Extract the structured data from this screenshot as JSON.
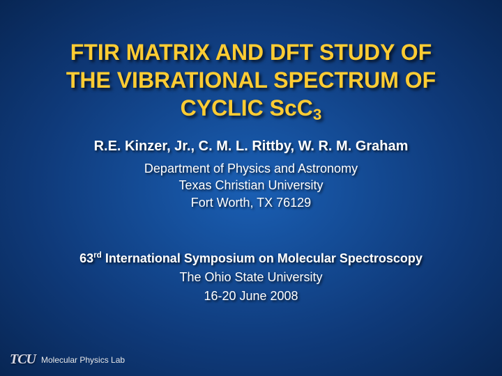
{
  "slide": {
    "background": {
      "gradient_center": "#1a5fb4",
      "gradient_mid": "#0f3a7a",
      "gradient_edge": "#082654"
    },
    "title": {
      "line1": "FTIR MATRIX AND DFT STUDY OF",
      "line2": "THE VIBRATIONAL SPECTRUM OF",
      "line3_prefix": "CYCLIC ScC",
      "line3_subscript": "3",
      "color": "#ffcc33",
      "fontsize": 32
    },
    "authors": {
      "text": "R.E. Kinzer, Jr., C. M. L. Rittby, W. R. M. Graham",
      "fontsize": 20,
      "color": "#ffffff"
    },
    "affiliation": {
      "dept": "Department of Physics and Astronomy",
      "university": "Texas Christian University",
      "location": "Fort Worth, TX 76129",
      "fontsize": 18,
      "color": "#ffffff"
    },
    "conference": {
      "ordinal": "63",
      "ordinal_sup": "rd",
      "name_rest": " International Symposium on Molecular Spectroscopy",
      "host": "The Ohio State University",
      "dates": "16-20 June 2008",
      "fontsize": 18,
      "color": "#ffffff"
    },
    "footer": {
      "logo_text": "TCU",
      "lab_name": "Molecular Physics Lab",
      "logo_color": "#d9d9e6",
      "lab_fontsize": 12
    }
  }
}
